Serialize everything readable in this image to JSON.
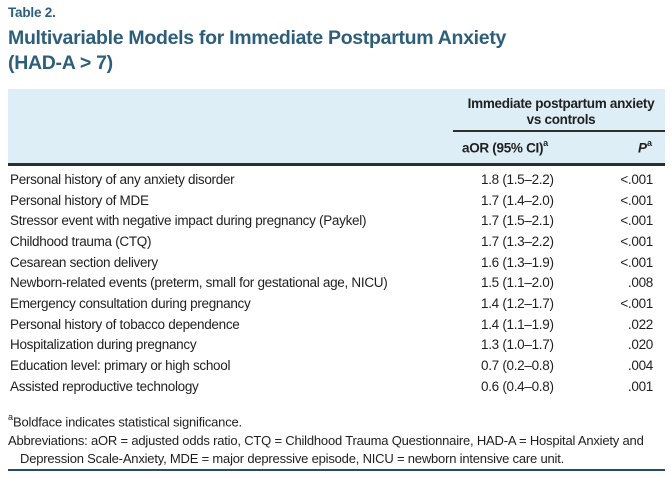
{
  "table_label": "Table 2.",
  "title": "Multivariable Models for Immediate Postpartum Anxiety (HAD-A > 7)",
  "header": {
    "group": "Immediate postpartum anxiety vs controls",
    "col_aor": "aOR (95% CI)",
    "col_aor_sup": "a",
    "col_p": "P",
    "col_p_sup": "a"
  },
  "rows": [
    {
      "label": "Personal history of any anxiety disorder",
      "aor": "1.8 (1.5–2.2)",
      "p": "<.001"
    },
    {
      "label": "Personal history of MDE",
      "aor": "1.7 (1.4–2.0)",
      "p": "<.001"
    },
    {
      "label": "Stressor event with negative impact during pregnancy (Paykel)",
      "aor": "1.7 (1.5–2.1)",
      "p": "<.001"
    },
    {
      "label": "Childhood trauma (CTQ)",
      "aor": "1.7 (1.3–2.2)",
      "p": "<.001"
    },
    {
      "label": "Cesarean section delivery",
      "aor": "1.6 (1.3–1.9)",
      "p": "<.001"
    },
    {
      "label": "Newborn-related events (preterm, small for gestational age, NICU)",
      "aor": "1.5 (1.1–2.0)",
      "p": ".008"
    },
    {
      "label": "Emergency consultation during pregnancy",
      "aor": "1.4 (1.2–1.7)",
      "p": "<.001"
    },
    {
      "label": "Personal history of tobacco dependence",
      "aor": "1.4 (1.1–1.9)",
      "p": ".022"
    },
    {
      "label": "Hospitalization during pregnancy",
      "aor": "1.3 (1.0–1.7)",
      "p": ".020"
    },
    {
      "label": "Education level: primary or high school",
      "aor": "0.7 (0.2–0.8)",
      "p": ".004"
    },
    {
      "label": "Assisted reproductive technology",
      "aor": "0.6 (0.4–0.8)",
      "p": ".001"
    }
  ],
  "footnotes": {
    "sig_sup": "a",
    "sig": "Boldface indicates statistical significance.",
    "abbr": "Abbreviations: aOR = adjusted odds ratio, CTQ = Childhood Trauma Questionnaire, HAD-A = Hospital Anxiety and Depression Scale-Anxiety, MDE = major depressive episode, NICU = newborn intensive care unit."
  },
  "colors": {
    "title": "#2E5F7A",
    "header_band": "#DEEEF6",
    "bottom_rule": "#2A4A68",
    "text": "#1F1F1F"
  }
}
